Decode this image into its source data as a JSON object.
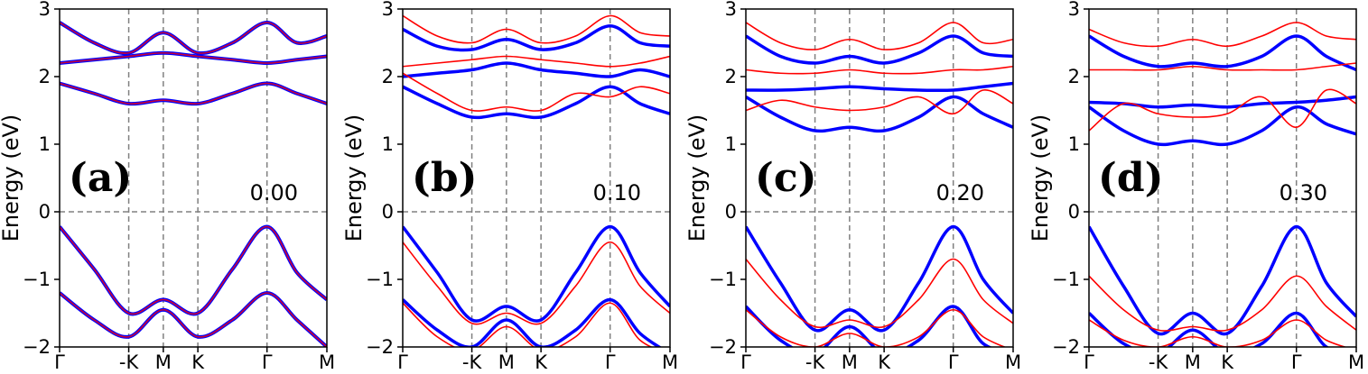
{
  "figure": {
    "ylabel": "Energy (eV)",
    "ylim": [
      -2,
      3
    ],
    "yticks": [
      -2,
      -1,
      0,
      1,
      2,
      3
    ],
    "ytick_labels": [
      "−2",
      "−1",
      "0",
      "1",
      "2",
      "3"
    ],
    "path_nodes": [
      "Γ",
      "-K",
      "M",
      "K",
      "Γ",
      "M"
    ],
    "path_positions": [
      0,
      1.0,
      1.5,
      2.0,
      3.0,
      3.866
    ],
    "colors": {
      "spin_up": "#0000ff",
      "spin_down": "#ff0000",
      "overlap": "#8b1a8b",
      "guide": "#808080"
    }
  },
  "chart_data": [
    {
      "type": "line",
      "panel": "(a)",
      "value": "0.00",
      "series": [
        {
          "name": "spin-up/down VB1",
          "color": "#8b1a8b",
          "x": [
            0,
            0.5,
            1.0,
            1.5,
            2.0,
            2.5,
            3.0,
            3.433,
            3.866
          ],
          "y": [
            -0.22,
            -0.85,
            -1.5,
            -1.3,
            -1.5,
            -0.85,
            -0.22,
            -0.9,
            -1.3
          ]
        },
        {
          "name": "spin-up/down VB2",
          "color": "#8b1a8b",
          "x": [
            0,
            0.5,
            1.0,
            1.5,
            2.0,
            2.5,
            3.0,
            3.433,
            3.866
          ],
          "y": [
            -1.2,
            -1.6,
            -1.85,
            -1.45,
            -1.85,
            -1.6,
            -1.2,
            -1.6,
            -2.0
          ]
        },
        {
          "name": "spin-up/down CB1",
          "color": "#8b1a8b",
          "x": [
            0,
            0.5,
            1.0,
            1.5,
            2.0,
            2.5,
            3.0,
            3.433,
            3.866
          ],
          "y": [
            1.9,
            1.75,
            1.6,
            1.65,
            1.6,
            1.75,
            1.9,
            1.75,
            1.6
          ]
        },
        {
          "name": "spin-up/down CB2",
          "color": "#8b1a8b",
          "x": [
            0,
            0.5,
            1.0,
            1.5,
            2.0,
            2.5,
            3.0,
            3.433,
            3.866
          ],
          "y": [
            2.2,
            2.25,
            2.3,
            2.35,
            2.3,
            2.25,
            2.2,
            2.25,
            2.3
          ]
        },
        {
          "name": "spin-up/down CB3",
          "color": "#8b1a8b",
          "x": [
            0,
            0.5,
            1.0,
            1.5,
            2.0,
            2.5,
            3.0,
            3.433,
            3.866
          ],
          "y": [
            2.8,
            2.5,
            2.35,
            2.65,
            2.35,
            2.5,
            2.8,
            2.5,
            2.6
          ]
        }
      ]
    },
    {
      "type": "line",
      "panel": "(b)",
      "value": "0.10",
      "series": [
        {
          "name": "spin-up VB1",
          "color": "#0000ff",
          "x": [
            0,
            0.5,
            1.0,
            1.5,
            2.0,
            2.5,
            3.0,
            3.433,
            3.866
          ],
          "y": [
            -0.22,
            -0.9,
            -1.6,
            -1.4,
            -1.6,
            -0.9,
            -0.22,
            -0.9,
            -1.4
          ]
        },
        {
          "name": "spin-up VB2",
          "color": "#0000ff",
          "x": [
            0,
            0.5,
            1.0,
            1.5,
            2.0,
            2.5,
            3.0,
            3.433,
            3.866
          ],
          "y": [
            -1.3,
            -1.75,
            -2.0,
            -1.6,
            -2.0,
            -1.75,
            -1.3,
            -1.8,
            -2.1
          ]
        },
        {
          "name": "spin-down VB1",
          "color": "#ff0000",
          "x": [
            0,
            0.5,
            1.0,
            1.5,
            2.0,
            2.5,
            3.0,
            3.433,
            3.866
          ],
          "y": [
            -0.45,
            -1.1,
            -1.65,
            -1.5,
            -1.65,
            -1.1,
            -0.45,
            -1.1,
            -1.5
          ]
        },
        {
          "name": "spin-down VB2",
          "color": "#ff0000",
          "x": [
            0,
            0.5,
            1.0,
            1.5,
            2.0,
            2.5,
            3.0,
            3.433,
            3.866
          ],
          "y": [
            -1.35,
            -1.85,
            -2.05,
            -1.7,
            -2.05,
            -1.85,
            -1.35,
            -1.9,
            -2.1
          ]
        },
        {
          "name": "spin-up CB1",
          "color": "#0000ff",
          "x": [
            0,
            0.5,
            1.0,
            1.5,
            2.0,
            2.5,
            3.0,
            3.433,
            3.866
          ],
          "y": [
            1.85,
            1.6,
            1.4,
            1.45,
            1.4,
            1.6,
            1.85,
            1.6,
            1.45
          ]
        },
        {
          "name": "spin-up CB2",
          "color": "#0000ff",
          "x": [
            0,
            0.5,
            1.0,
            1.5,
            2.0,
            2.5,
            3.0,
            3.433,
            3.866
          ],
          "y": [
            2.0,
            2.05,
            2.1,
            2.2,
            2.1,
            2.05,
            2.0,
            2.1,
            2.0
          ]
        },
        {
          "name": "spin-up CB3",
          "color": "#0000ff",
          "x": [
            0,
            0.5,
            1.0,
            1.5,
            2.0,
            2.5,
            3.0,
            3.433,
            3.866
          ],
          "y": [
            2.7,
            2.45,
            2.4,
            2.55,
            2.4,
            2.5,
            2.75,
            2.5,
            2.45
          ]
        },
        {
          "name": "spin-down CB1",
          "color": "#ff0000",
          "x": [
            0,
            0.5,
            1.0,
            1.5,
            2.0,
            2.5,
            3.0,
            3.433,
            3.866
          ],
          "y": [
            2.05,
            1.75,
            1.5,
            1.55,
            1.5,
            1.75,
            1.7,
            1.85,
            1.75
          ]
        },
        {
          "name": "spin-down CB2",
          "color": "#ff0000",
          "x": [
            0,
            0.5,
            1.0,
            1.5,
            2.0,
            2.5,
            3.0,
            3.433,
            3.866
          ],
          "y": [
            2.15,
            2.2,
            2.25,
            2.3,
            2.25,
            2.2,
            2.15,
            2.2,
            2.3
          ]
        },
        {
          "name": "spin-down CB3",
          "color": "#ff0000",
          "x": [
            0,
            0.5,
            1.0,
            1.5,
            2.0,
            2.5,
            3.0,
            3.433,
            3.866
          ],
          "y": [
            2.9,
            2.6,
            2.5,
            2.7,
            2.5,
            2.6,
            2.9,
            2.65,
            2.6
          ]
        }
      ]
    },
    {
      "type": "line",
      "panel": "(c)",
      "value": "0.20",
      "series": [
        {
          "name": "spin-up VB1",
          "color": "#0000ff",
          "x": [
            0,
            0.5,
            1.0,
            1.5,
            2.0,
            2.5,
            3.0,
            3.433,
            3.866
          ],
          "y": [
            -0.22,
            -1.05,
            -1.75,
            -1.45,
            -1.75,
            -1.05,
            -0.22,
            -1.0,
            -1.5
          ]
        },
        {
          "name": "spin-up VB2",
          "color": "#0000ff",
          "x": [
            0,
            0.5,
            1.0,
            1.5,
            2.0,
            2.5,
            3.0,
            3.433,
            3.866
          ],
          "y": [
            -1.4,
            -1.9,
            -2.1,
            -1.7,
            -2.1,
            -1.9,
            -1.4,
            -1.95,
            -2.1
          ]
        },
        {
          "name": "spin-down VB1",
          "color": "#ff0000",
          "x": [
            0,
            0.5,
            1.0,
            1.5,
            2.0,
            2.5,
            3.0,
            3.433,
            3.866
          ],
          "y": [
            -0.7,
            -1.3,
            -1.7,
            -1.6,
            -1.7,
            -1.3,
            -0.7,
            -1.3,
            -1.65
          ]
        },
        {
          "name": "spin-down VB2",
          "color": "#ff0000",
          "x": [
            0,
            0.5,
            1.0,
            1.5,
            2.0,
            2.5,
            3.0,
            3.433,
            3.866
          ],
          "y": [
            -1.45,
            -1.85,
            -2.0,
            -1.8,
            -2.0,
            -1.85,
            -1.45,
            -1.85,
            -2.05
          ]
        },
        {
          "name": "spin-up CB1",
          "color": "#0000ff",
          "x": [
            0,
            0.5,
            1.0,
            1.5,
            2.0,
            2.5,
            3.0,
            3.433,
            3.866
          ],
          "y": [
            1.7,
            1.4,
            1.2,
            1.25,
            1.2,
            1.4,
            1.7,
            1.45,
            1.25
          ]
        },
        {
          "name": "spin-up CB2",
          "color": "#0000ff",
          "x": [
            0,
            0.5,
            1.0,
            1.5,
            2.0,
            2.5,
            3.0,
            3.433,
            3.866
          ],
          "y": [
            1.8,
            1.8,
            1.82,
            1.85,
            1.82,
            1.8,
            1.8,
            1.85,
            1.9
          ]
        },
        {
          "name": "spin-up CB3",
          "color": "#0000ff",
          "x": [
            0,
            0.5,
            1.0,
            1.5,
            2.0,
            2.5,
            3.0,
            3.433,
            3.866
          ],
          "y": [
            2.6,
            2.3,
            2.2,
            2.3,
            2.2,
            2.35,
            2.6,
            2.35,
            2.3
          ]
        },
        {
          "name": "spin-down CB1",
          "color": "#ff0000",
          "x": [
            0,
            0.5,
            1.0,
            1.5,
            2.0,
            2.5,
            3.0,
            3.433,
            3.866
          ],
          "y": [
            1.5,
            1.65,
            1.55,
            1.5,
            1.55,
            1.7,
            1.45,
            1.8,
            1.6
          ]
        },
        {
          "name": "spin-down CB2",
          "color": "#ff0000",
          "x": [
            0,
            0.5,
            1.0,
            1.5,
            2.0,
            2.5,
            3.0,
            3.433,
            3.866
          ],
          "y": [
            2.1,
            2.05,
            2.05,
            2.1,
            2.05,
            2.05,
            2.1,
            2.1,
            2.15
          ]
        },
        {
          "name": "spin-down CB3",
          "color": "#ff0000",
          "x": [
            0,
            0.5,
            1.0,
            1.5,
            2.0,
            2.5,
            3.0,
            3.433,
            3.866
          ],
          "y": [
            2.8,
            2.5,
            2.4,
            2.55,
            2.4,
            2.5,
            2.8,
            2.5,
            2.55
          ]
        }
      ]
    },
    {
      "type": "line",
      "panel": "(d)",
      "value": "0.30",
      "series": [
        {
          "name": "spin-up VB1",
          "color": "#0000ff",
          "x": [
            0,
            0.5,
            1.0,
            1.5,
            2.0,
            2.5,
            3.0,
            3.433,
            3.866
          ],
          "y": [
            -0.22,
            -1.1,
            -1.8,
            -1.5,
            -1.8,
            -1.1,
            -0.22,
            -1.05,
            -1.55
          ]
        },
        {
          "name": "spin-up VB2",
          "color": "#0000ff",
          "x": [
            0,
            0.5,
            1.0,
            1.5,
            2.0,
            2.5,
            3.0,
            3.433,
            3.866
          ],
          "y": [
            -1.5,
            -1.95,
            -2.1,
            -1.75,
            -2.1,
            -1.95,
            -1.5,
            -2.0,
            -2.1
          ]
        },
        {
          "name": "spin-down VB1",
          "color": "#ff0000",
          "x": [
            0,
            0.5,
            1.0,
            1.5,
            2.0,
            2.5,
            3.0,
            3.433,
            3.866
          ],
          "y": [
            -0.95,
            -1.45,
            -1.75,
            -1.7,
            -1.75,
            -1.45,
            -0.95,
            -1.4,
            -1.75
          ]
        },
        {
          "name": "spin-down VB2",
          "color": "#ff0000",
          "x": [
            0,
            0.5,
            1.0,
            1.5,
            2.0,
            2.5,
            3.0,
            3.433,
            3.866
          ],
          "y": [
            -1.6,
            -1.9,
            -2.0,
            -1.85,
            -2.0,
            -1.9,
            -1.6,
            -1.9,
            -2.05
          ]
        },
        {
          "name": "spin-up CB1",
          "color": "#0000ff",
          "x": [
            0,
            0.5,
            1.0,
            1.5,
            2.0,
            2.5,
            3.0,
            3.433,
            3.866
          ],
          "y": [
            1.55,
            1.2,
            1.0,
            1.05,
            1.0,
            1.2,
            1.55,
            1.3,
            1.15
          ]
        },
        {
          "name": "spin-up CB2",
          "color": "#0000ff",
          "x": [
            0,
            0.5,
            1.0,
            1.5,
            2.0,
            2.5,
            3.0,
            3.433,
            3.866
          ],
          "y": [
            1.62,
            1.6,
            1.55,
            1.58,
            1.55,
            1.6,
            1.62,
            1.65,
            1.7
          ]
        },
        {
          "name": "spin-up CB3",
          "color": "#0000ff",
          "x": [
            0,
            0.5,
            1.0,
            1.5,
            2.0,
            2.5,
            3.0,
            3.433,
            3.866
          ],
          "y": [
            2.6,
            2.3,
            2.15,
            2.2,
            2.15,
            2.3,
            2.6,
            2.3,
            2.1
          ]
        },
        {
          "name": "spin-down CB1",
          "color": "#ff0000",
          "x": [
            0,
            0.5,
            1.0,
            1.5,
            2.0,
            2.5,
            3.0,
            3.433,
            3.866
          ],
          "y": [
            1.2,
            1.6,
            1.45,
            1.4,
            1.45,
            1.7,
            1.25,
            1.8,
            1.6
          ]
        },
        {
          "name": "spin-down CB2",
          "color": "#ff0000",
          "x": [
            0,
            0.5,
            1.0,
            1.5,
            2.0,
            2.5,
            3.0,
            3.433,
            3.866
          ],
          "y": [
            2.1,
            2.1,
            2.1,
            2.15,
            2.1,
            2.1,
            2.1,
            2.15,
            2.2
          ]
        },
        {
          "name": "spin-down CB3",
          "color": "#ff0000",
          "x": [
            0,
            0.5,
            1.0,
            1.5,
            2.0,
            2.5,
            3.0,
            3.433,
            3.866
          ],
          "y": [
            2.7,
            2.5,
            2.45,
            2.55,
            2.45,
            2.6,
            2.8,
            2.6,
            2.55
          ]
        }
      ]
    }
  ]
}
